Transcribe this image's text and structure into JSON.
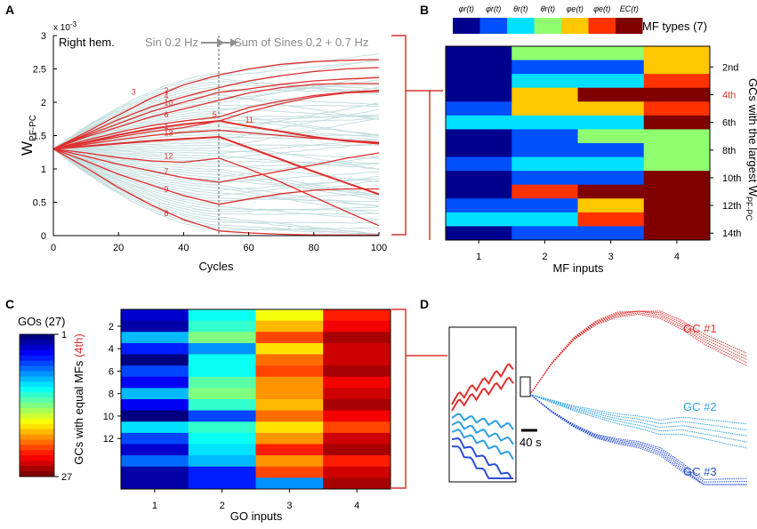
{
  "panel_labels": [
    "A",
    "B",
    "C",
    "D"
  ],
  "chart_data": [
    {
      "panel": "A",
      "type": "line",
      "xlabel": "Cycles",
      "ylabel": "W",
      "ylabel_sub": "PF-PC",
      "exponent_label": "x 10",
      "exponent_power": "-3",
      "annotation_hem": "Right hem.",
      "annotation_sin": "Sin 0.2 Hz",
      "annotation_sum": "Sum of Sines 0.2 + 0.7 Hz",
      "divider_x": 51,
      "xlim": [
        0,
        100
      ],
      "ylim": [
        0,
        3
      ],
      "xticks": [
        0,
        20,
        40,
        60,
        80,
        100
      ],
      "yticks": [
        0,
        0.5,
        1,
        1.5,
        2,
        2.5,
        3
      ],
      "ytick_labels": [
        "0",
        "0.5",
        "1",
        "1.5",
        "2",
        "2.5",
        "3"
      ],
      "background_series_count": 60,
      "background_color": "#c5dede",
      "highlight_color": "#e03030",
      "x": [
        0,
        10,
        20,
        30,
        40,
        51,
        60,
        70,
        80,
        90,
        100
      ],
      "series": [
        {
          "name": "1",
          "values": [
            1.3,
            1.37,
            1.44,
            1.5,
            1.55,
            1.58,
            1.54,
            1.5,
            1.46,
            1.43,
            1.4
          ]
        },
        {
          "name": "3",
          "values": [
            1.3,
            1.55,
            1.81,
            2.06,
            2.26,
            2.41,
            2.5,
            2.57,
            2.61,
            2.63,
            2.64
          ]
        },
        {
          "name": "2",
          "values": [
            1.3,
            1.52,
            1.74,
            1.93,
            2.08,
            2.22,
            2.32,
            2.4,
            2.46,
            2.5,
            2.52
          ]
        },
        {
          "name": "4",
          "values": [
            1.3,
            1.5,
            1.68,
            1.86,
            2.0,
            2.15,
            2.2,
            2.27,
            2.32,
            2.35,
            2.37
          ]
        },
        {
          "name": "10",
          "values": [
            1.3,
            1.48,
            1.63,
            1.78,
            1.9,
            2.03,
            2.14,
            2.22,
            2.27,
            2.28,
            2.28
          ]
        },
        {
          "name": "6",
          "values": [
            1.3,
            1.43,
            1.55,
            1.65,
            1.72,
            1.78,
            1.92,
            2.02,
            2.1,
            2.15,
            2.18
          ]
        },
        {
          "name": "5",
          "values": [
            1.3,
            1.39,
            1.48,
            1.56,
            1.62,
            1.72,
            1.86,
            1.98,
            2.08,
            2.14,
            2.16
          ]
        },
        {
          "name": "11",
          "values": [
            1.3,
            1.4,
            1.51,
            1.6,
            1.67,
            1.72,
            1.64,
            1.56,
            1.48,
            1.42,
            1.38
          ]
        },
        {
          "name": "13",
          "values": [
            1.3,
            1.34,
            1.38,
            1.42,
            1.45,
            1.48,
            1.32,
            1.14,
            0.96,
            0.79,
            0.62
          ]
        },
        {
          "name": "12",
          "values": [
            1.3,
            1.24,
            1.17,
            1.12,
            1.1,
            1.16,
            1.0,
            0.8,
            0.58,
            0.36,
            0.15
          ]
        },
        {
          "name": "7",
          "values": [
            1.3,
            1.19,
            1.07,
            0.97,
            0.87,
            0.8,
            0.88,
            0.97,
            1.06,
            1.16,
            1.24
          ]
        },
        {
          "name": "9",
          "values": [
            1.3,
            1.12,
            0.92,
            0.76,
            0.6,
            0.47,
            0.55,
            0.63,
            0.68,
            0.7,
            0.7
          ]
        },
        {
          "name": "8",
          "values": [
            1.3,
            1.02,
            0.72,
            0.46,
            0.24,
            0.07,
            0.04,
            0.02,
            0.01,
            0.01,
            0.01
          ]
        }
      ]
    },
    {
      "panel": "B",
      "type": "heatmap",
      "xlabel": "MF inputs",
      "ylabel": "GCs with the largest W",
      "ylabel_sub": "PF-PC",
      "categories": [
        "1",
        "2",
        "3",
        "4"
      ],
      "row_labels": [
        "2nd",
        "4th",
        "6th",
        "8th",
        "10th",
        "12th",
        "14th"
      ],
      "highlight_row": "4th",
      "legend_title": "MF types (7)",
      "mf_types": [
        "φr(t)",
        "φ̇r(t)",
        "θr(t)",
        "θ̇r(t)",
        "φe(t)",
        "φ̇e(t)",
        "EC(t)"
      ],
      "type_colors": [
        "#00008f",
        "#0050ff",
        "#00e0ff",
        "#8fff70",
        "#ffc800",
        "#ff3200",
        "#800000"
      ],
      "values": [
        [
          1,
          4,
          4,
          5
        ],
        [
          1,
          2,
          2,
          5
        ],
        [
          1,
          3,
          3,
          6
        ],
        [
          1,
          5,
          7,
          7
        ],
        [
          2,
          5,
          5,
          6
        ],
        [
          3,
          3,
          3,
          7
        ],
        [
          1,
          2,
          4,
          4
        ],
        [
          1,
          2,
          2,
          4
        ],
        [
          2,
          3,
          3,
          4
        ],
        [
          1,
          2,
          2,
          7
        ],
        [
          1,
          6,
          7,
          7
        ],
        [
          2,
          2,
          5,
          7
        ],
        [
          3,
          3,
          6,
          7
        ],
        [
          1,
          2,
          2,
          7
        ]
      ]
    },
    {
      "panel": "C",
      "type": "heatmap",
      "xlabel": "GO inputs",
      "ylabel": "GCs with equal MFs",
      "ylabel_highlight": "(4th)",
      "categories": [
        "1",
        "2",
        "3",
        "4"
      ],
      "row_tick_labels": [
        "2",
        "4",
        "6",
        "8",
        "10",
        "12"
      ],
      "colorbar_title": "GOs (27)",
      "colorbar_range": [
        "1",
        "27"
      ],
      "vmin": 1,
      "vmax": 27,
      "values": [
        [
          3,
          11,
          17,
          23
        ],
        [
          2,
          12,
          19,
          24
        ],
        [
          9,
          14,
          22,
          26
        ],
        [
          5,
          8,
          18,
          25
        ],
        [
          1,
          11,
          21,
          25
        ],
        [
          6,
          11,
          22,
          26
        ],
        [
          4,
          13,
          20,
          24
        ],
        [
          9,
          14,
          20,
          25
        ],
        [
          4,
          12,
          19,
          26
        ],
        [
          1,
          6,
          21,
          24
        ],
        [
          10,
          12,
          18,
          22
        ],
        [
          6,
          11,
          20,
          25
        ],
        [
          3,
          10,
          23,
          26
        ],
        [
          7,
          9,
          20,
          23
        ],
        [
          2,
          5,
          22,
          25
        ],
        [
          2,
          5,
          8,
          26
        ]
      ]
    },
    {
      "panel": "D",
      "type": "line",
      "scale_bar_label": "40 s",
      "groups": [
        {
          "name": "GC #1",
          "color": "#e03030",
          "values": [
            0.48,
            0.3,
            0.16,
            0.07,
            0.02,
            0.0,
            0.02,
            0.08,
            0.16,
            0.22,
            0.28
          ]
        },
        {
          "name": "GC #2",
          "color": "#2e9fe6",
          "values": [
            0.48,
            0.52,
            0.56,
            0.59,
            0.62,
            0.64,
            0.67,
            0.66,
            0.68,
            0.7,
            0.72
          ]
        },
        {
          "name": "GC #3",
          "color": "#2b4fd6",
          "values": [
            0.48,
            0.58,
            0.66,
            0.72,
            0.75,
            0.77,
            0.81,
            0.9,
            1.0,
            1.0,
            1.0
          ]
        }
      ]
    }
  ]
}
